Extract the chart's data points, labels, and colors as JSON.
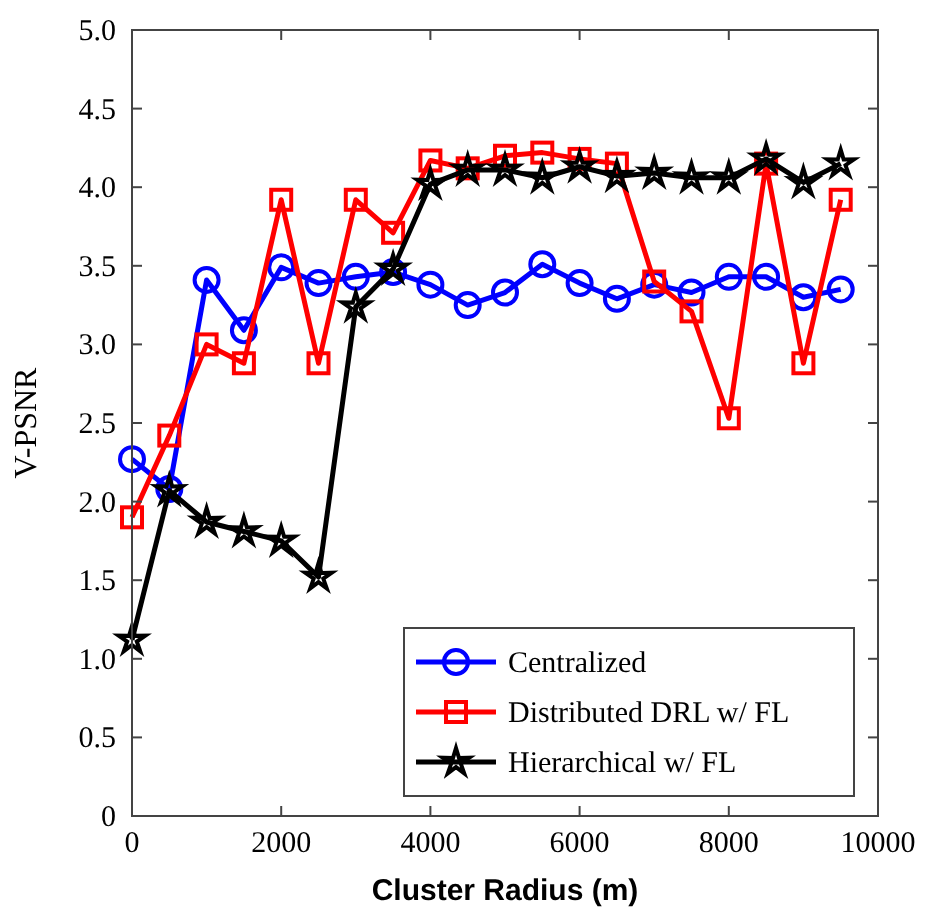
{
  "chart_data": {
    "type": "line",
    "xlabel": "Cluster Radius (m)",
    "ylabel": "V-PSNR",
    "x": [
      0,
      500,
      1000,
      1500,
      2000,
      2500,
      3000,
      3500,
      4000,
      4500,
      5000,
      5500,
      6000,
      6500,
      7000,
      7500,
      8000,
      8500,
      9000,
      9500
    ],
    "xlim": [
      0,
      10000
    ],
    "xticks": [
      0,
      2000,
      4000,
      6000,
      8000,
      10000
    ],
    "ylim": [
      0,
      5
    ],
    "yticks": [
      0,
      {
        "value": 0.5,
        "label": "0.5"
      },
      {
        "value": 1,
        "label": "1.0"
      },
      {
        "value": 1.5,
        "label": "1.5"
      },
      {
        "value": 2,
        "label": "2.0"
      },
      {
        "value": 2.5,
        "label": "2.5"
      },
      {
        "value": 3,
        "label": "3.0"
      },
      {
        "value": 3.5,
        "label": "3.5"
      },
      {
        "value": 4,
        "label": "4.0"
      },
      {
        "value": 4.5,
        "label": "4.5"
      },
      {
        "value": 5,
        "label": "5.0"
      }
    ],
    "grid": false,
    "legend": "bottom right",
    "line_style": "solid",
    "series": [
      {
        "name": "Centralized",
        "color": "#0000ff",
        "marker": "circle",
        "values": [
          2.27,
          2.08,
          3.41,
          3.09,
          3.49,
          3.39,
          3.43,
          3.46,
          3.38,
          3.25,
          3.33,
          3.51,
          3.39,
          3.29,
          3.38,
          3.33,
          3.43,
          3.43,
          3.3,
          3.35
        ]
      },
      {
        "name": "Distributed DRL w/ FL",
        "color": "#ff0000",
        "marker": "square",
        "values": [
          1.9,
          2.42,
          3.0,
          2.88,
          3.92,
          2.88,
          3.92,
          3.71,
          4.17,
          4.12,
          4.2,
          4.22,
          4.18,
          4.15,
          3.4,
          3.21,
          2.53,
          4.15,
          2.88,
          3.92
        ]
      },
      {
        "name": "Hierarchical w/ FL",
        "color": "#000000",
        "marker": "star",
        "values": [
          1.12,
          2.07,
          1.87,
          1.81,
          1.75,
          1.52,
          3.24,
          3.48,
          4.02,
          4.11,
          4.11,
          4.06,
          4.13,
          4.07,
          4.09,
          4.06,
          4.06,
          4.18,
          4.03,
          4.15
        ]
      }
    ]
  }
}
